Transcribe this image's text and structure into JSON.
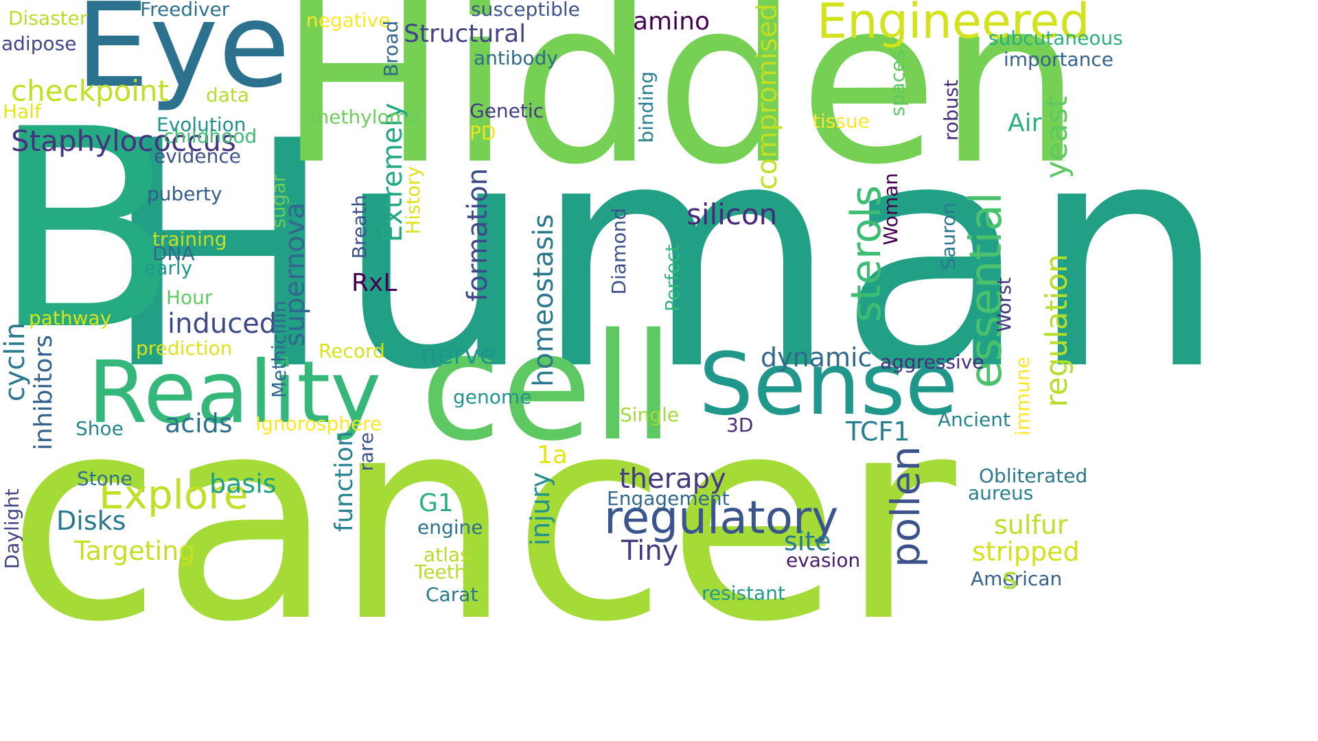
{
  "words": [
    "Human",
    "cancer",
    "B",
    "Hidden",
    "cell",
    "Eye",
    "Reality",
    "Sense",
    "Engineered",
    "essential",
    "sterols",
    "pollen",
    "yeast",
    "regulation",
    "compromised",
    "supernova",
    "formation",
    "homeostasis",
    "Extremely",
    "cyclin",
    "inhibitors",
    "function",
    "injury",
    "rare",
    "regulatory",
    "Explore",
    "checkpoint",
    "Staphylococcus",
    "silicon",
    "therapy",
    "Tiny",
    "induced",
    "nerve",
    "acids",
    "TCF1",
    "dynamic",
    "Targeting",
    "Disks",
    "basis",
    "site",
    "sulfur",
    "stripped",
    "Structural",
    "amino",
    "RxL",
    "G1",
    "1a",
    "Air",
    "engine",
    "Teeth",
    "atlas",
    "Carat",
    "resistant",
    "evasion",
    "American",
    "aureus",
    "Obliterated",
    "Engagement",
    "3D",
    "Ancient",
    "aggressive",
    "tissue",
    "subcutaneous",
    "importance",
    "susceptible",
    "negative",
    "antibody",
    "methylome",
    "Genetic",
    "PD",
    "Record",
    "genome",
    "Single",
    "Ignorosphere",
    "Shoe",
    "Stone",
    "pathway",
    "Hour",
    "early",
    "DNA",
    "training",
    "puberty",
    "evidence",
    "childhood",
    "Evolution",
    "data",
    "Half",
    "adipose",
    "Disaster",
    "Freediver",
    "prediction",
    "Worst",
    "immune",
    "Woman",
    "Sauron",
    "Diamond",
    "Perfect",
    "binding",
    "spaces",
    "robust",
    "Broad",
    "History",
    "Breath",
    "sugar",
    "Methicillin",
    "Daylight",
    "s"
  ],
  "palette": {
    "Human": "#21a085",
    "cancer": "#a5db36",
    "B": "#25ab82",
    "Hidden": "#75d054",
    "cell": "#5ec962",
    "Eye": "#2c728e",
    "Reality": "#35b779",
    "Sense": "#1f988b",
    "Engineered": "#d2e21b",
    "essential": "#4ac16d",
    "sterols": "#3dbc74",
    "pollen": "#3b528b",
    "yeast": "#5ec962",
    "regulation": "#b5de2b",
    "compromised": "#c2df23",
    "supernova": "#31688e",
    "formation": "#3e4989",
    "homeostasis": "#2a788e",
    "Extremely": "#22a884",
    "cyclin": "#2a788e",
    "inhibitors": "#33638d",
    "function": "#26828e",
    "injury": "#21918c",
    "rare": "#3b528b",
    "regulatory": "#39558c",
    "Explore": "#c0df25",
    "checkpoint": "#c2df23",
    "Staphylococcus": "#46327e",
    "silicon": "#482878",
    "therapy": "#443983",
    "Tiny": "#453781",
    "induced": "#3e4989",
    "nerve": "#1f968b",
    "acids": "#2d708e",
    "TCF1": "#277f8e",
    "dynamic": "#31688e",
    "Targeting": "#c5e021",
    "Disks": "#2a788e",
    "basis": "#1fa187",
    "site": "#287c8e",
    "sulfur": "#bddf26",
    "stripped": "#d2e21b",
    "Structural": "#414487",
    "amino": "#440154",
    "RxL": "#440154",
    "G1": "#29af7f",
    "1a": "#e5e419",
    "Air": "#2ab07f",
    "engine": "#2c728e",
    "Teeth": "#b5de2b",
    "atlas": "#b5de2b",
    "Carat": "#2a788e",
    "resistant": "#1f988b",
    "evasion": "#481a6c",
    "American": "#355f8d",
    "aureus": "#26828e",
    "Obliterated": "#2a788e",
    "Engagement": "#31688e",
    "3D": "#472c7a",
    "Ancient": "#25838e",
    "aggressive": "#472d7b",
    "tissue": "#fde725",
    "subcutaneous": "#2ab07f",
    "importance": "#33638d",
    "susceptible": "#3b528b",
    "negative": "#fde725",
    "antibody": "#2f6c8e",
    "methylome": "#6ccd5a",
    "Genetic": "#443a83",
    "PD": "#f1e51d",
    "Record": "#d8e219",
    "genome": "#20928c",
    "Single": "#a2da37",
    "Ignorosphere": "#fde725",
    "Shoe": "#24868e",
    "Stone": "#2c728e",
    "pathway": "#dde318",
    "Hour": "#5ec962",
    "early": "#1f988b",
    "DNA": "#31688e",
    "training": "#c8e020",
    "puberty": "#365c8d",
    "evidence": "#3b528b",
    "childhood": "#3fbc73",
    "Evolution": "#21918c",
    "data": "#b2dd2d",
    "Half": "#e7e419",
    "adipose": "#3f4788",
    "Disaster": "#b8de29",
    "Freediver": "#2c728e",
    "prediction": "#dde318",
    "Worst": "#46337e",
    "immune": "#fde725",
    "Woman": "#440154",
    "Sauron": "#2a788e",
    "Diamond": "#3b528b",
    "Perfect": "#35b779",
    "binding": "#26828e",
    "spaces": "#5ec962",
    "robust": "#46307e",
    "Broad": "#31688e",
    "History": "#dde318",
    "Breath": "#3b528b",
    "sugar": "#6ccd5a",
    "Methicillin": "#31688e",
    "Daylight": "#414487",
    "s": "#a8db34"
  }
}
